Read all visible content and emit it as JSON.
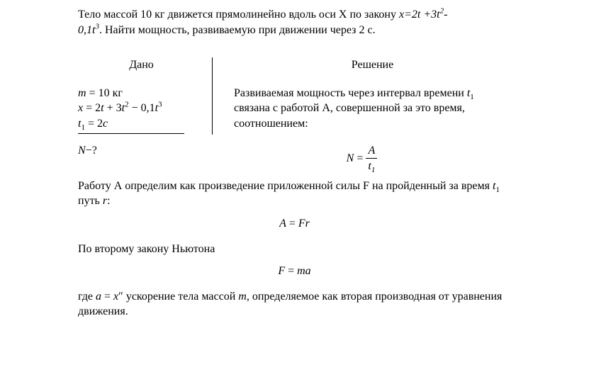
{
  "problem": {
    "line1_prefix": "Тело массой 10 кг движется прямолинейно вдоль оси X по закону ",
    "eq1_html": "x=2t +3t<sup>2</sup>-",
    "line2_eq_html": "0,1t<sup>3</sup>",
    "line2_suffix": ".  Найти мощность, развиваемую при движении через 2 с."
  },
  "given": {
    "heading": "Дано",
    "rows": [
      "<span class='italic'>m</span> = 10 кг",
      "<span class='italic'>x</span> = 2<span class='italic'>t</span> + 3<span class='italic'>t</span><sup>2</sup> − 0,1<span class='italic'>t</span><sup>3</sup>",
      "<span class='italic'>t</span><sub>1</sub> = 2<span class='italic'>c</span>"
    ],
    "sought": "<span class='italic'>N</span>−?"
  },
  "solution": {
    "heading": "Решение",
    "p1": "Развиваемая мощность через интервал времени  <span class='italic'>t</span><sub>1</sub> связана с работой А, совершенной за это время, соотношением:",
    "formula1": "<span class='italic'>N</span> = <span class='frac'><span class='num'>A</span><span class='den'>t<sub>1</sub></span></span>",
    "p2": " Работу А определим как произведение приложенной силы F на пройденный за время <span class='italic'>t</span><sub>1</sub> путь <span class='italic'>r</span>:",
    "formula2": "<span class='italic'>A</span> = <span class='italic'>Fr</span>",
    "p3": "По второму закону Ньютона",
    "formula3": "<span class='italic'>F</span> = <span class='italic'>ma</span>",
    "p4": "где <span class='italic'>a</span> = <span class='italic'>x</span>″ ускорение тела массой <span class='italic'>m</span>, определяемое как вторая производная от уравнения движения."
  }
}
